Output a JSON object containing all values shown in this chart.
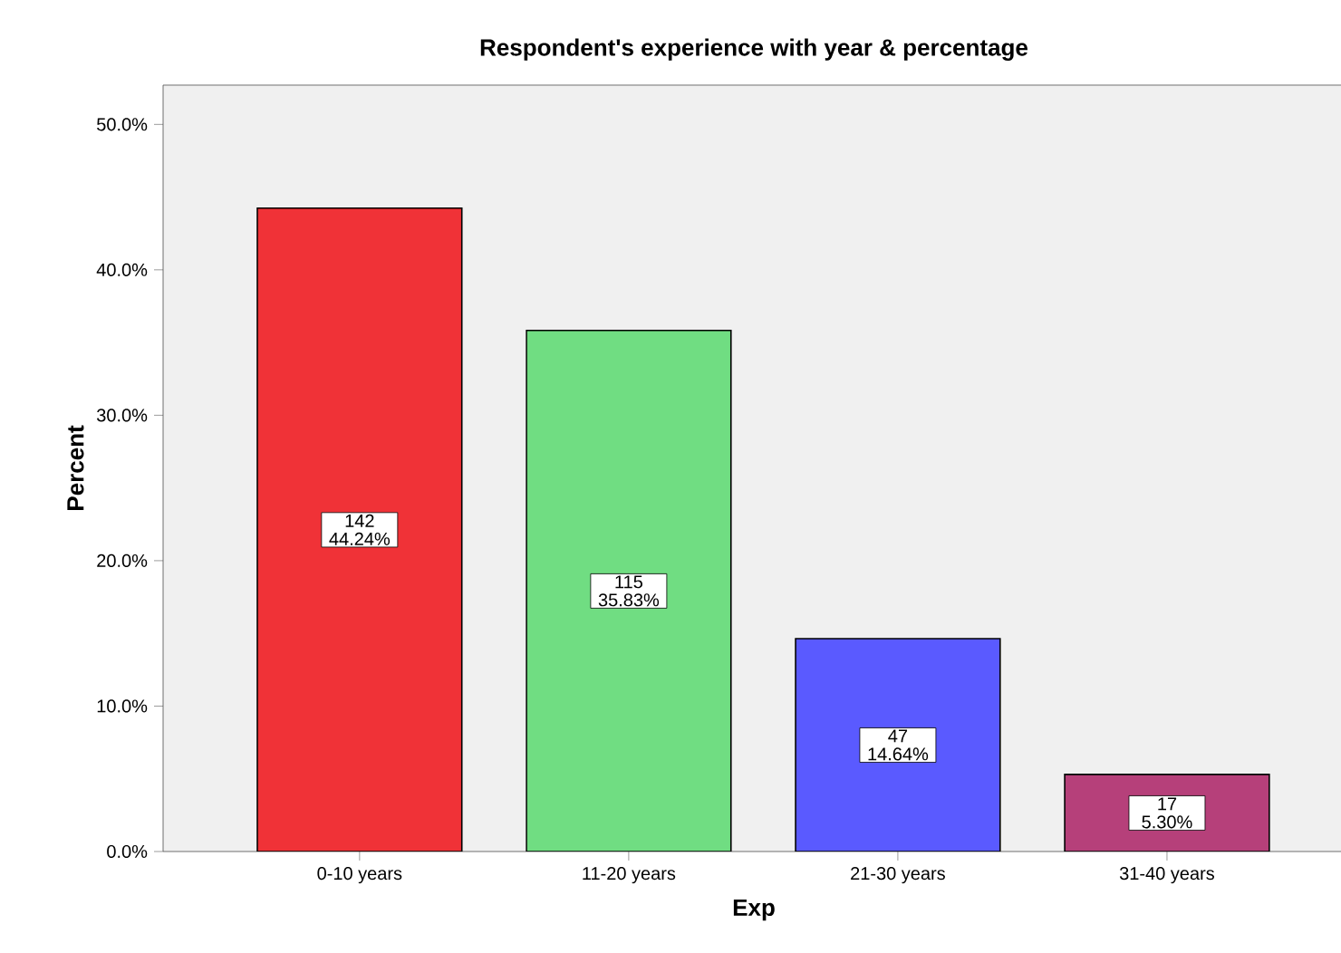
{
  "chart_data": {
    "type": "bar",
    "title": "Respondent's experience with year & percentage",
    "xlabel": "Exp",
    "ylabel": "Percent",
    "categories": [
      "0-10 years",
      "11-20 years",
      "21-30 years",
      "31-40 years"
    ],
    "values": [
      44.24,
      35.83,
      14.64,
      5.3
    ],
    "colors": [
      "#f03237",
      "#70dd82",
      "#5a5aff",
      "#b6407a"
    ],
    "value_labels": [
      "142 44.24%",
      "115 35.83%",
      "47 14.64%",
      "17 5.30%"
    ],
    "ylim": [
      0,
      52.7
    ],
    "yticks": [
      {
        "value": 0,
        "label": "0.0%"
      },
      {
        "value": 10,
        "label": "10.0%"
      },
      {
        "value": 20,
        "label": "20.0%"
      },
      {
        "value": 30,
        "label": "30.0%"
      },
      {
        "value": 40,
        "label": "40.0%"
      },
      {
        "value": 50,
        "label": "50.0%"
      }
    ],
    "grid": false
  }
}
